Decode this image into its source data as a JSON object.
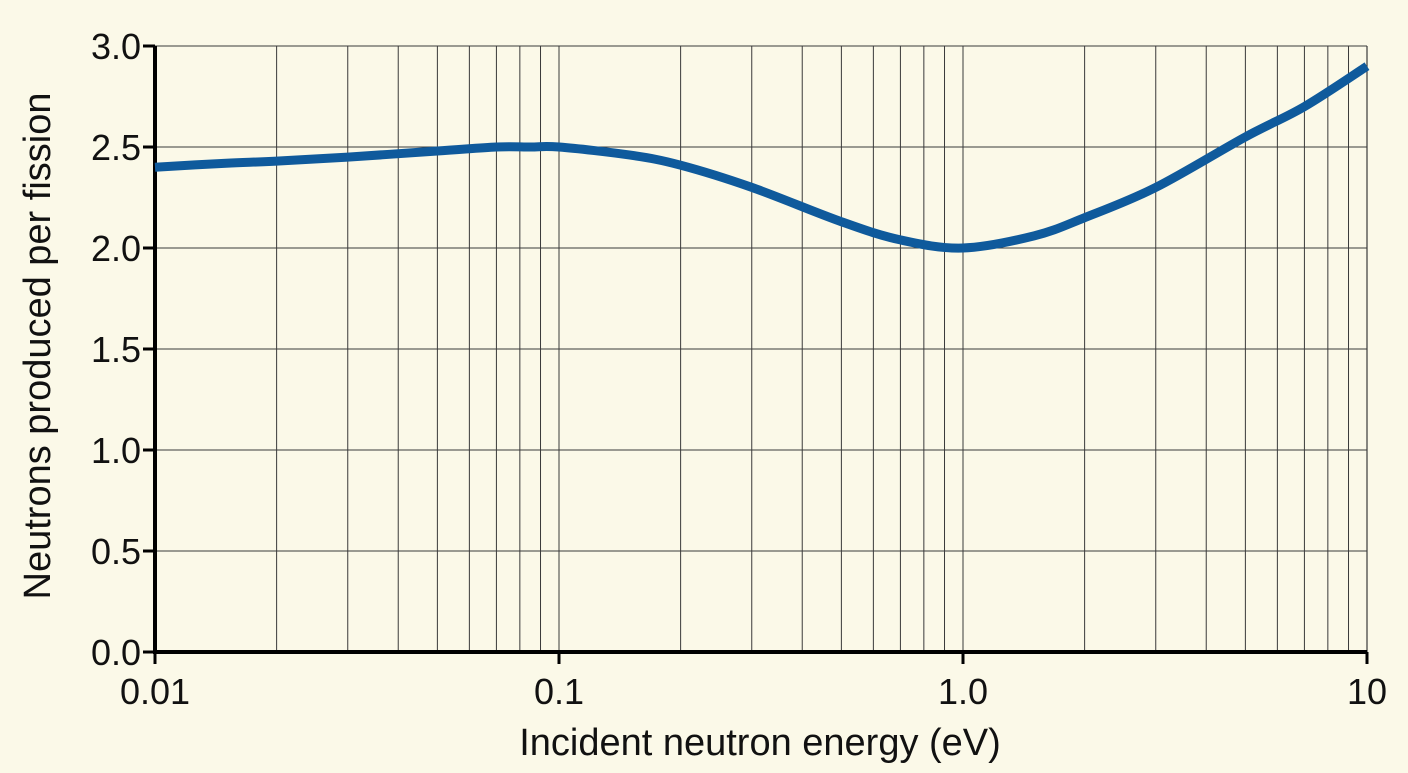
{
  "chart_data": {
    "type": "line",
    "title": "",
    "xlabel": "Incident neutron energy (eV)",
    "ylabel": "Neutrons produced per fission",
    "x_scale": "log",
    "xlim": [
      0.01,
      10
    ],
    "ylim": [
      0.0,
      3.0
    ],
    "grid": true,
    "legend": "none",
    "x_tick_labels": [
      "0.01",
      "0.1",
      "1.0",
      "10"
    ],
    "x_tick_values": [
      0.01,
      0.1,
      1.0,
      10
    ],
    "y_tick_labels": [
      "0.0",
      "0.5",
      "1.0",
      "1.5",
      "2.0",
      "2.5",
      "3.0"
    ],
    "y_tick_values": [
      0.0,
      0.5,
      1.0,
      1.5,
      2.0,
      2.5,
      3.0
    ],
    "series": [
      {
        "color": "#0f5a9c",
        "x": [
          0.01,
          0.015,
          0.02,
          0.03,
          0.05,
          0.07,
          0.085,
          0.1,
          0.15,
          0.2,
          0.3,
          0.5,
          0.7,
          1.0,
          1.5,
          2.0,
          3.0,
          5.0,
          7.0,
          10
        ],
        "y": [
          2.4,
          2.42,
          2.43,
          2.45,
          2.48,
          2.5,
          2.5,
          2.5,
          2.46,
          2.41,
          2.3,
          2.13,
          2.04,
          2.0,
          2.06,
          2.15,
          2.3,
          2.55,
          2.7,
          2.9
        ]
      }
    ]
  },
  "colors": {
    "background": "#fbf9e8",
    "grid": "#3a3a3a",
    "axis": "#000000",
    "line": "#0f5a9c"
  }
}
